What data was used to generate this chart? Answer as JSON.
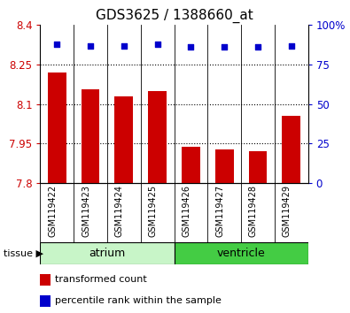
{
  "title": "GDS3625 / 1388660_at",
  "samples": [
    "GSM119422",
    "GSM119423",
    "GSM119424",
    "GSM119425",
    "GSM119426",
    "GSM119427",
    "GSM119428",
    "GSM119429"
  ],
  "red_values": [
    8.22,
    8.155,
    8.128,
    8.148,
    7.938,
    7.928,
    7.922,
    8.055
  ],
  "blue_values": [
    88,
    87,
    87,
    88,
    86,
    86,
    86,
    87
  ],
  "ylim_left": [
    7.8,
    8.4
  ],
  "ylim_right": [
    0,
    100
  ],
  "yticks_left": [
    7.8,
    7.95,
    8.1,
    8.25,
    8.4
  ],
  "ytick_labels_left": [
    "7.8",
    "7.95",
    "8.1",
    "8.25",
    "8.4"
  ],
  "yticks_right": [
    0,
    25,
    50,
    75,
    100
  ],
  "ytick_labels_right": [
    "0",
    "25",
    "50",
    "75",
    "100%"
  ],
  "group_atrium_color": "#c8f5c8",
  "group_ventricle_color": "#44cc44",
  "group_labels": [
    "atrium",
    "ventricle"
  ],
  "bar_color": "#cc0000",
  "marker_color": "#0000cc",
  "bar_width": 0.55,
  "tick_area_color": "#cccccc",
  "legend_red_label": "transformed count",
  "legend_blue_label": "percentile rank within the sample",
  "title_fontsize": 11,
  "tick_fontsize": 8.5,
  "label_fontsize": 8,
  "group_fontsize": 9
}
